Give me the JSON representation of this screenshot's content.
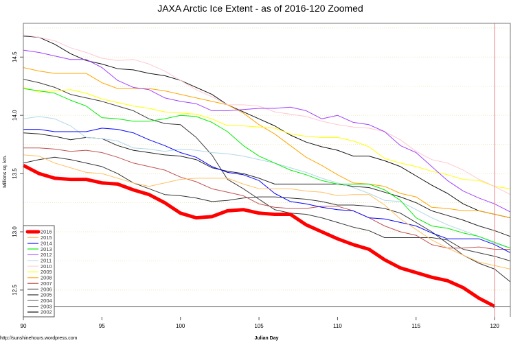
{
  "chart_data": {
    "type": "line",
    "title": "JAXA Arctic Ice Extent - as of 2016-120 Zoomed",
    "xlabel": "Julian Day",
    "ylabel": "Millions sq. km.",
    "footer": "http://sunshinehours.wordpress.com",
    "xlim": [
      90,
      121
    ],
    "ylim": [
      12.27,
      14.79
    ],
    "x_ticks": [
      90,
      95,
      100,
      105,
      110,
      115,
      120
    ],
    "x_tick_labels": [
      "90",
      "95",
      "100",
      "105",
      "110",
      "115",
      "120"
    ],
    "y_ticks": [
      12.5,
      13.0,
      13.5,
      14.0,
      14.5
    ],
    "y_tick_labels": [
      "12.5",
      "13.0",
      "13.5",
      "14.0",
      "14.5"
    ],
    "grid": "dotted horizontal lines every 0.25",
    "grid_color": "#efe8bf",
    "reference_lines": {
      "vertical_day": 120,
      "vertical_color": "#e88080",
      "horizontal_value": 12.36,
      "horizontal_color": "#555555"
    },
    "legend_position": "bottom-left",
    "x_start": 90,
    "series": [
      {
        "name": "2016",
        "color": "#ff0000",
        "width": 5,
        "values": [
          13.57,
          13.5,
          13.46,
          13.45,
          13.45,
          13.42,
          13.41,
          13.36,
          13.32,
          13.25,
          13.16,
          13.12,
          13.13,
          13.18,
          13.19,
          13.16,
          13.15,
          13.15,
          13.06,
          13.0,
          12.94,
          12.89,
          12.85,
          12.76,
          12.69,
          12.65,
          12.61,
          12.58,
          12.52,
          12.43,
          12.36
        ]
      },
      {
        "name": "2015",
        "color": "#ffc060",
        "width": 1,
        "values": [
          13.66,
          13.65,
          13.59,
          13.55,
          13.51,
          13.5,
          13.46,
          13.42,
          13.39,
          13.42,
          13.45,
          13.46,
          13.46,
          13.46,
          13.41,
          13.37,
          13.37,
          13.37,
          13.35,
          13.34,
          13.31,
          13.32,
          13.32,
          13.23,
          13.11,
          13.02,
          12.93,
          12.86,
          12.8,
          12.74,
          12.71,
          12.68
        ]
      },
      {
        "name": "2014",
        "color": "#0000ff",
        "width": 1,
        "values": [
          13.88,
          13.88,
          13.86,
          13.86,
          13.86,
          13.89,
          13.88,
          13.85,
          13.79,
          13.74,
          13.68,
          13.64,
          13.56,
          13.51,
          13.49,
          13.44,
          13.33,
          13.26,
          13.24,
          13.21,
          13.19,
          13.18,
          13.12,
          13.11,
          13.08,
          13.05,
          12.99,
          12.94,
          12.94,
          12.94,
          12.89,
          12.82
        ]
      },
      {
        "name": "2013",
        "color": "#00ee00",
        "width": 1,
        "values": [
          14.23,
          14.21,
          14.19,
          14.13,
          14.08,
          13.98,
          13.97,
          13.95,
          13.95,
          13.97,
          14.0,
          13.99,
          13.94,
          13.86,
          13.74,
          13.65,
          13.59,
          13.53,
          13.49,
          13.44,
          13.41,
          13.41,
          13.41,
          13.36,
          13.27,
          13.12,
          13.05,
          13.03,
          12.99,
          12.96,
          12.91,
          12.86
        ]
      },
      {
        "name": "2012",
        "color": "#a040ff",
        "width": 1,
        "values": [
          14.56,
          14.54,
          14.51,
          14.48,
          14.48,
          14.41,
          14.3,
          14.24,
          14.22,
          14.15,
          14.12,
          14.1,
          14.04,
          14.04,
          14.05,
          14.06,
          14.06,
          14.07,
          14.04,
          13.97,
          14.0,
          13.94,
          13.92,
          13.86,
          13.74,
          13.68,
          13.56,
          13.44,
          13.35,
          13.29,
          13.24,
          13.17
        ]
      },
      {
        "name": "2011",
        "color": "#b0d8e8",
        "width": 1,
        "values": [
          13.97,
          13.99,
          13.97,
          13.91,
          13.81,
          13.8,
          13.78,
          13.72,
          13.71,
          13.69,
          13.71,
          13.7,
          13.68,
          13.67,
          13.65,
          13.62,
          13.59,
          13.55,
          13.51,
          13.46,
          13.42,
          13.38,
          13.33,
          13.27,
          13.26,
          13.19,
          13.12,
          13.06,
          13.01,
          12.96,
          12.9,
          12.86
        ]
      },
      {
        "name": "2010",
        "color": "#ffc8d0",
        "width": 1,
        "values": [
          14.69,
          14.67,
          14.64,
          14.58,
          14.54,
          14.49,
          14.47,
          14.48,
          14.44,
          14.38,
          14.3,
          14.22,
          14.16,
          14.09,
          14.09,
          14.08,
          14.03,
          14.01,
          13.99,
          13.95,
          13.92,
          13.9,
          13.89,
          13.86,
          13.79,
          13.69,
          13.62,
          13.59,
          13.53,
          13.45,
          13.39,
          13.32
        ]
      },
      {
        "name": "2009",
        "color": "#ffff00",
        "width": 1,
        "values": [
          14.24,
          14.2,
          14.21,
          14.22,
          14.19,
          14.14,
          14.11,
          14.08,
          14.06,
          14.03,
          14.02,
          14.01,
          13.97,
          13.91,
          13.91,
          13.9,
          13.89,
          13.84,
          13.82,
          13.81,
          13.81,
          13.78,
          13.73,
          13.63,
          13.59,
          13.56,
          13.52,
          13.49,
          13.45,
          13.44,
          13.39,
          13.37
        ]
      },
      {
        "name": "2008",
        "color": "#ffa500",
        "width": 1,
        "values": [
          14.41,
          14.38,
          14.36,
          14.36,
          14.36,
          14.28,
          14.23,
          14.23,
          14.23,
          14.21,
          14.18,
          14.15,
          14.12,
          14.09,
          14.02,
          13.92,
          13.84,
          13.74,
          13.64,
          13.57,
          13.49,
          13.42,
          13.41,
          13.39,
          13.33,
          13.3,
          13.21,
          13.2,
          13.18,
          13.18,
          13.15,
          13.12
        ]
      },
      {
        "name": "2007",
        "color": "#c05050",
        "width": 1,
        "values": [
          13.72,
          13.72,
          13.71,
          13.69,
          13.7,
          13.68,
          13.64,
          13.59,
          13.56,
          13.53,
          13.47,
          13.43,
          13.37,
          13.34,
          13.31,
          13.24,
          13.21,
          13.2,
          13.2,
          13.22,
          13.22,
          13.18,
          13.12,
          13.05,
          13.0,
          12.97,
          12.89,
          12.86,
          12.86,
          12.87,
          12.85,
          12.85
        ]
      },
      {
        "name": "2006",
        "color": "#333333",
        "width": 1,
        "values": [
          13.59,
          13.62,
          13.64,
          13.62,
          13.59,
          13.56,
          13.5,
          13.42,
          13.37,
          13.32,
          13.31,
          13.29,
          13.26,
          13.27,
          13.29,
          13.3,
          13.3,
          13.29,
          13.28,
          13.26,
          13.23,
          13.23,
          13.22,
          13.2,
          13.16,
          13.08,
          13.0,
          12.9,
          12.8,
          12.73,
          12.68,
          12.57
        ]
      },
      {
        "name": "2005",
        "color": "#222222",
        "width": 1,
        "values": [
          13.85,
          13.84,
          13.82,
          13.79,
          13.81,
          13.8,
          13.74,
          13.7,
          13.68,
          13.66,
          13.65,
          13.62,
          13.55,
          13.52,
          13.5,
          13.46,
          13.41,
          13.41,
          13.41,
          13.41,
          13.41,
          13.39,
          13.38,
          13.34,
          13.3,
          13.25,
          13.18,
          13.14,
          13.1,
          13.05,
          13.01,
          12.96
        ]
      },
      {
        "name": "2004",
        "color": "#3a3a3a",
        "width": 1,
        "values": [
          14.31,
          14.28,
          14.24,
          14.18,
          14.15,
          14.12,
          14.08,
          14.04,
          13.97,
          13.93,
          13.92,
          13.81,
          13.66,
          13.45,
          13.37,
          13.28,
          13.19,
          13.16,
          13.15,
          13.12,
          13.08,
          13.04,
          13.01,
          12.95,
          12.95,
          12.95,
          12.95,
          12.93,
          12.85,
          12.82,
          12.79,
          12.75
        ]
      },
      {
        "name": "2003",
        "color": "#555555",
        "width": 1,
        "values": []
      },
      {
        "name": "2002",
        "color": "#111111",
        "width": 1,
        "values": [
          14.68,
          14.67,
          14.61,
          14.53,
          14.47,
          14.44,
          14.4,
          14.39,
          14.36,
          14.34,
          14.3,
          14.24,
          14.18,
          14.09,
          14.03,
          13.97,
          13.91,
          13.83,
          13.77,
          13.73,
          13.7,
          13.65,
          13.65,
          13.61,
          13.56,
          13.48,
          13.4,
          13.33,
          13.24,
          13.18,
          13.15,
          13.12
        ]
      }
    ],
    "legend_colors": {
      "2016": "#ff0000",
      "2015": "#ffc060",
      "2014": "#0000ff",
      "2013": "#00ee00",
      "2012": "#b070ff",
      "2011": "#c8dde8",
      "2010": "#ffd0d8",
      "2009": "#ffff00",
      "2008": "#ffa500",
      "2007": "#c05050",
      "2006": "#444444",
      "2005": "#333333",
      "2004": "#888888",
      "2003": "#444444",
      "2002": "#111111"
    }
  }
}
